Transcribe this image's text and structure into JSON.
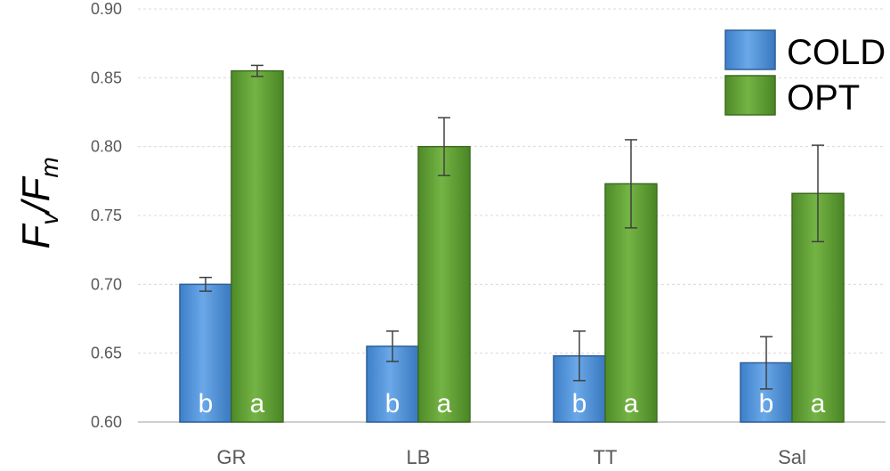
{
  "chart_data": {
    "type": "bar",
    "categories": [
      "GR",
      "LB",
      "TT",
      "Sal"
    ],
    "series": [
      {
        "name": "COLD",
        "color": "#4a8ed6",
        "values": [
          0.7,
          0.655,
          0.648,
          0.643
        ],
        "errors": [
          0.005,
          0.011,
          0.018,
          0.019
        ],
        "letters": [
          "b",
          "b",
          "b",
          "b"
        ]
      },
      {
        "name": "OPT",
        "color": "#5e9e32",
        "values": [
          0.855,
          0.8,
          0.773,
          0.766
        ],
        "errors": [
          0.004,
          0.021,
          0.032,
          0.035
        ],
        "letters": [
          "a",
          "a",
          "a",
          "a"
        ]
      }
    ],
    "ylabel": {
      "main": "F",
      "sub1": "v",
      "slash": "/",
      "main2": "F",
      "sub2": "m"
    },
    "ylim": [
      0.6,
      0.9
    ],
    "yticks": [
      "0.60",
      "0.65",
      "0.70",
      "0.75",
      "0.80",
      "0.85",
      "0.90"
    ],
    "grid": true,
    "legend_position": "top-right"
  }
}
